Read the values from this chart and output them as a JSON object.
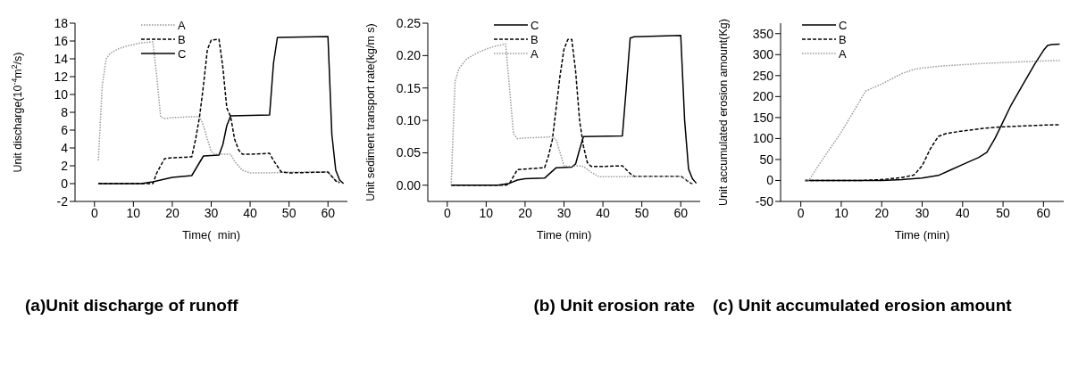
{
  "chart_data": [
    {
      "type": "line",
      "title": "(a)Unit discharge of runoff",
      "xlabel": "Time(  min)",
      "ylabel": "Unit discharge(10$^{-4}$m$^{2}$/s)",
      "xlim": [
        -5,
        65
      ],
      "xticks": [
        0,
        10,
        20,
        30,
        40,
        50,
        60
      ],
      "ylim": [
        -2,
        18
      ],
      "yticks": [
        -2,
        0,
        2,
        4,
        6,
        8,
        10,
        12,
        14,
        16,
        18
      ],
      "legend": "top",
      "marker": "none",
      "series": [
        {
          "name": "A",
          "color": "#999999",
          "line_style": "dotted",
          "x": [
            1,
            2,
            3,
            4,
            6,
            8,
            10,
            12,
            15,
            16,
            17,
            18,
            20,
            25,
            27,
            28,
            29,
            30,
            31,
            33,
            35,
            36,
            38,
            40,
            45,
            50,
            60,
            61,
            62,
            63
          ],
          "values": [
            2.6,
            11,
            14,
            14.6,
            15.1,
            15.4,
            15.6,
            15.8,
            15.9,
            12,
            7.5,
            7.3,
            7.4,
            7.5,
            7.5,
            6.5,
            5,
            3.6,
            3.3,
            3.3,
            3.3,
            2.5,
            1.5,
            1.2,
            1.2,
            1.3,
            1.3,
            0.8,
            0.4,
            0.1
          ]
        },
        {
          "name": "B",
          "color": "#000000",
          "line_style": "dashed",
          "x": [
            1,
            15,
            16,
            18,
            20,
            25,
            26,
            27,
            28,
            29,
            30,
            32,
            33,
            34,
            35,
            36,
            37,
            38,
            40,
            45,
            46,
            48,
            50,
            60,
            61,
            62,
            63
          ],
          "values": [
            0,
            0,
            1.2,
            2.8,
            2.9,
            3.0,
            5,
            7.5,
            11,
            15,
            16.1,
            16.2,
            13,
            8.5,
            7.5,
            5,
            3.8,
            3.3,
            3.3,
            3.4,
            2.6,
            1.3,
            1.2,
            1.3,
            0.8,
            0.3,
            0.1
          ]
        },
        {
          "name": "C",
          "color": "#000000",
          "line_style": "solid",
          "x": [
            1,
            12,
            15,
            18,
            20,
            25,
            28,
            32,
            33,
            34,
            35,
            45,
            46,
            47,
            60,
            61,
            62,
            63,
            64
          ],
          "values": [
            0,
            0,
            0.2,
            0.5,
            0.7,
            0.9,
            3.1,
            3.2,
            4.4,
            6.5,
            7.6,
            7.7,
            13.5,
            16.4,
            16.5,
            5.5,
            1.5,
            0.4,
            0
          ]
        }
      ]
    },
    {
      "type": "line",
      "title": "(b) Unit erosion rate",
      "xlabel": "Time (min)",
      "ylabel": "Unit sediment transport rate(kg/m s)",
      "xlim": [
        -5,
        65
      ],
      "xticks": [
        0,
        10,
        20,
        30,
        40,
        50,
        60
      ],
      "ylim": [
        -0.025,
        0.25
      ],
      "yticks": [
        {
          "value": 0,
          "label": "0.00"
        },
        {
          "value": 0.05,
          "label": "0.05"
        },
        {
          "value": 0.1,
          "label": "0.10"
        },
        {
          "value": 0.15,
          "label": "0.15"
        },
        {
          "value": 0.2,
          "label": "0.20"
        },
        {
          "value": 0.25,
          "label": "0.25"
        }
      ],
      "legend": "top",
      "marker": "none",
      "series": [
        {
          "name": "C",
          "color": "#000000",
          "line_style": "solid",
          "x": [
            1,
            13,
            16,
            18,
            20,
            25,
            28,
            32,
            33,
            34,
            35,
            45,
            46,
            47,
            48,
            60,
            61,
            62,
            63,
            64
          ],
          "values": [
            0,
            0,
            0.003,
            0.008,
            0.01,
            0.011,
            0.027,
            0.028,
            0.033,
            0.055,
            0.075,
            0.076,
            0.15,
            0.227,
            0.229,
            0.231,
            0.1,
            0.025,
            0.01,
            0.003
          ]
        },
        {
          "name": "B",
          "color": "#000000",
          "line_style": "dashed",
          "x": [
            1,
            15,
            16,
            18,
            20,
            25,
            26,
            27,
            28,
            29,
            30,
            31,
            32,
            33,
            34,
            35,
            36,
            37,
            40,
            45,
            47,
            48,
            50,
            60,
            61,
            62,
            63
          ],
          "values": [
            0,
            0,
            0.003,
            0.024,
            0.025,
            0.027,
            0.045,
            0.07,
            0.12,
            0.17,
            0.21,
            0.225,
            0.225,
            0.175,
            0.1,
            0.06,
            0.035,
            0.029,
            0.029,
            0.03,
            0.018,
            0.014,
            0.014,
            0.014,
            0.01,
            0.005,
            0.002
          ]
        },
        {
          "name": "A",
          "color": "#999999",
          "line_style": "dotted",
          "x": [
            1,
            2,
            3,
            5,
            8,
            10,
            12,
            15,
            16,
            17,
            18,
            20,
            25,
            27,
            28,
            29,
            30,
            31,
            34,
            35,
            37,
            39,
            45,
            50,
            60,
            61,
            62,
            63
          ],
          "values": [
            0,
            0.16,
            0.18,
            0.195,
            0.205,
            0.21,
            0.214,
            0.218,
            0.15,
            0.08,
            0.072,
            0.073,
            0.074,
            0.075,
            0.07,
            0.05,
            0.03,
            0.029,
            0.03,
            0.029,
            0.02,
            0.013,
            0.013,
            0.014,
            0.014,
            0.01,
            0.006,
            0.002
          ]
        }
      ]
    },
    {
      "type": "line",
      "title": "(c) Unit accumulated erosion amount",
      "xlabel": "Time (min)",
      "ylabel": "Unit accumulated erosion amount(Kg)",
      "xlim": [
        -5,
        65
      ],
      "xticks": [
        0,
        10,
        20,
        30,
        40,
        50,
        60
      ],
      "ylim": [
        -50,
        375
      ],
      "yticks": [
        -50,
        0,
        50,
        100,
        150,
        200,
        250,
        300,
        350
      ],
      "legend": "top left",
      "marker": "none",
      "series": [
        {
          "name": "C",
          "color": "#000000",
          "line_style": "solid",
          "x": [
            1,
            20,
            25,
            30,
            34,
            37,
            40,
            44,
            46,
            48,
            50,
            52,
            55,
            58,
            60,
            61,
            62,
            64
          ],
          "values": [
            0,
            0,
            2,
            6,
            12,
            25,
            38,
            55,
            67,
            100,
            140,
            180,
            230,
            280,
            310,
            322,
            324,
            325
          ]
        },
        {
          "name": "B",
          "color": "#000000",
          "line_style": "dashed",
          "x": [
            1,
            15,
            20,
            25,
            28,
            30,
            32,
            34,
            36,
            40,
            45,
            50,
            55,
            60,
            64
          ],
          "values": [
            0,
            0,
            2,
            7,
            13,
            35,
            75,
            105,
            112,
            118,
            124,
            128,
            130,
            132,
            133
          ]
        },
        {
          "name": "A",
          "color": "#999999",
          "line_style": "dotted",
          "x": [
            1,
            2,
            5,
            10,
            14,
            16,
            20,
            25,
            28,
            30,
            35,
            40,
            45,
            50,
            55,
            60,
            64
          ],
          "values": [
            0,
            0,
            45,
            115,
            180,
            213,
            230,
            255,
            265,
            268,
            273,
            276,
            279,
            281,
            283,
            285,
            286
          ]
        }
      ]
    }
  ]
}
